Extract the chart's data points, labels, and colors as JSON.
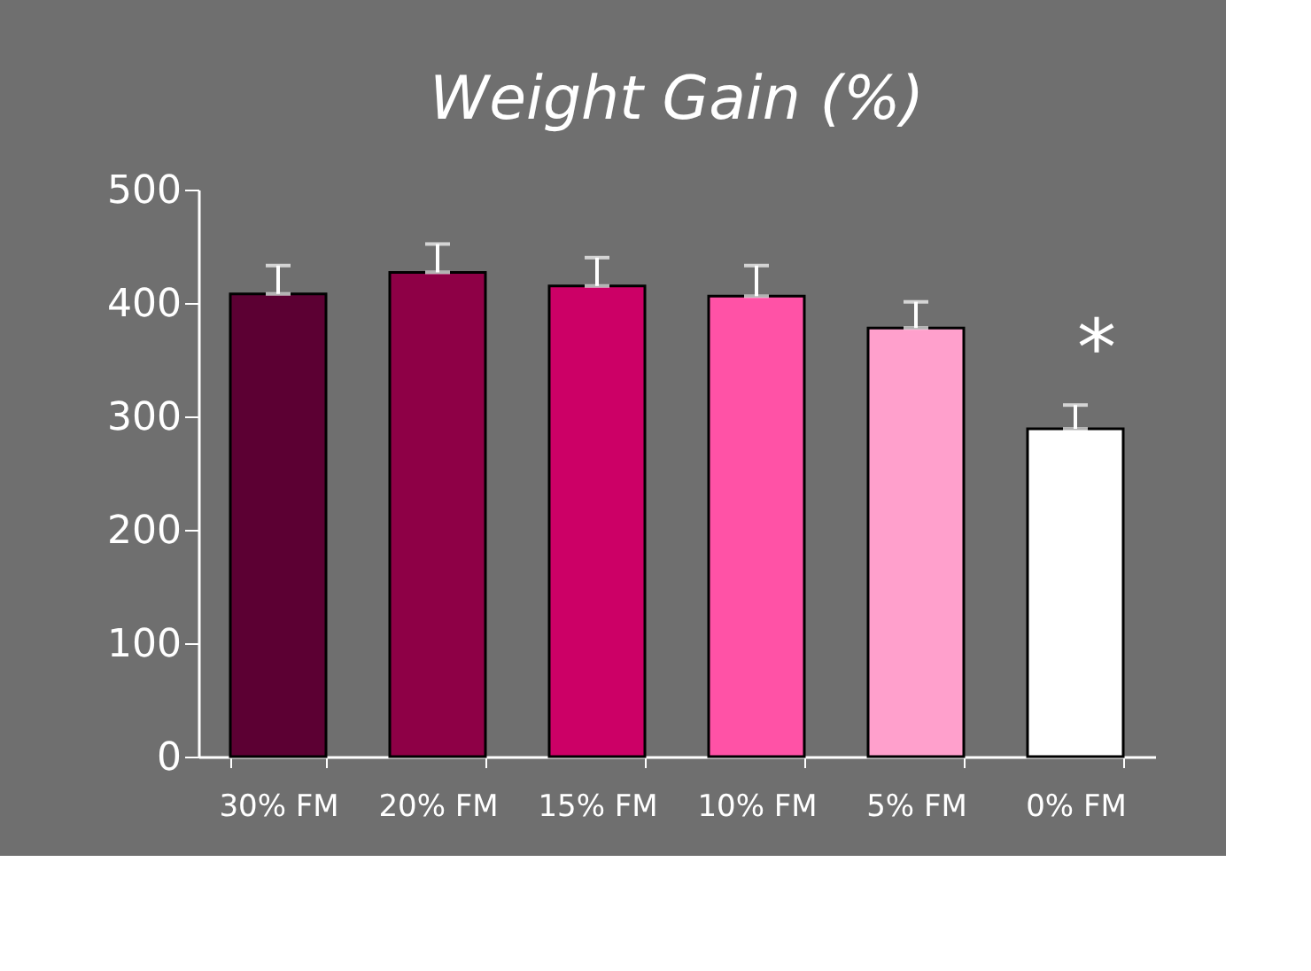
{
  "chart_data": {
    "type": "bar",
    "title": "Weight Gain (%)",
    "categories": [
      "30% FM",
      "20% FM",
      "15% FM",
      "10% FM",
      "5% FM",
      "0% FM"
    ],
    "values": [
      408,
      427,
      415,
      406,
      378,
      289
    ],
    "colors": [
      "#5c0033",
      "#8e0046",
      "#cc0066",
      "#ff52a6",
      "#ffa0cc",
      "#ffffff"
    ],
    "errors": [
      [
        408,
        433
      ],
      [
        427,
        452
      ],
      [
        415,
        440
      ],
      [
        406,
        433
      ],
      [
        378,
        401
      ],
      [
        289,
        310
      ]
    ],
    "annotations": [
      "*"
    ],
    "ylim": [
      0,
      500
    ],
    "yticks": [
      0,
      100,
      200,
      300,
      400,
      500
    ],
    "grid": false
  }
}
